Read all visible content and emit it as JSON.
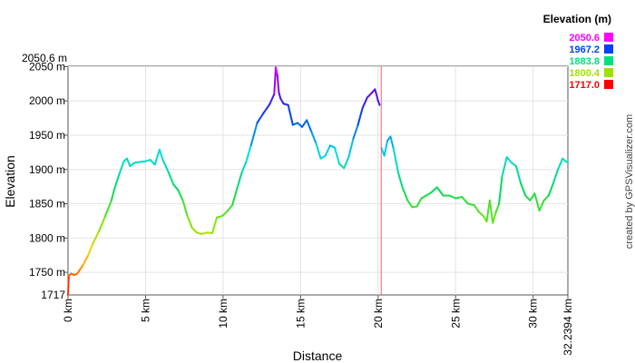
{
  "chart_data": {
    "type": "line",
    "xlabel": "Distance",
    "ylabel": "Elevation",
    "credit": "created by GPSVisualizer.com",
    "xlim": [
      0,
      32.2394
    ],
    "ylim": [
      1717,
      2050.6
    ],
    "ymax_label": "2050.6 m",
    "ymin_label": "1717",
    "y_ticks": [
      {
        "value": 1750,
        "label": "1750 m"
      },
      {
        "value": 1800,
        "label": "1800 m"
      },
      {
        "value": 1850,
        "label": "1850 m"
      },
      {
        "value": 1900,
        "label": "1900 m"
      },
      {
        "value": 1950,
        "label": "1950 m"
      },
      {
        "value": 2000,
        "label": "2000 m"
      },
      {
        "value": 2050,
        "label": "2050 m"
      }
    ],
    "x_ticks": [
      {
        "value": 0,
        "label": "0 km"
      },
      {
        "value": 5,
        "label": "5 km"
      },
      {
        "value": 10,
        "label": "10 km"
      },
      {
        "value": 15,
        "label": "15 km"
      },
      {
        "value": 20,
        "label": "20 km"
      },
      {
        "value": 25,
        "label": "25 km"
      },
      {
        "value": 30,
        "label": "30 km"
      },
      {
        "value": 32.2394,
        "label": "32.2394 km"
      }
    ],
    "legend": {
      "title": "Elevation (m)",
      "items": [
        {
          "label": "2050.6",
          "color": "#ff00ff"
        },
        {
          "label": "1967.2",
          "color": "#0040ff"
        },
        {
          "label": "1883.8",
          "color": "#00e080"
        },
        {
          "label": "1800.4",
          "color": "#a0e000"
        },
        {
          "label": "1717.0",
          "color": "#ff0000"
        }
      ]
    },
    "marker_x": 20.2,
    "segment_break_x": 20.1,
    "x": [
      0,
      0.05,
      0.2,
      0.4,
      0.6,
      0.8,
      1.0,
      1.3,
      1.6,
      2.0,
      2.4,
      2.8,
      3.0,
      3.3,
      3.6,
      3.8,
      4.0,
      4.3,
      4.6,
      5.0,
      5.3,
      5.6,
      5.9,
      6.1,
      6.3,
      6.5,
      6.8,
      7.1,
      7.4,
      7.7,
      8.0,
      8.3,
      8.6,
      9.0,
      9.3,
      9.6,
      9.8,
      10.0,
      10.3,
      10.6,
      10.9,
      11.2,
      11.5,
      11.8,
      12.2,
      12.6,
      13.0,
      13.3,
      13.4,
      13.5,
      13.6,
      13.7,
      13.9,
      14.2,
      14.5,
      14.8,
      15.1,
      15.4,
      15.7,
      16.0,
      16.3,
      16.6,
      16.9,
      17.2,
      17.5,
      17.8,
      18.1,
      18.4,
      18.7,
      19.0,
      19.3,
      19.6,
      19.8,
      20.0,
      20.1,
      20.2,
      20.4,
      20.6,
      20.8,
      21.0,
      21.3,
      21.6,
      21.9,
      22.2,
      22.5,
      22.8,
      23.1,
      23.4,
      23.8,
      24.2,
      24.6,
      25.0,
      25.4,
      25.8,
      26.2,
      26.5,
      26.8,
      27.0,
      27.2,
      27.4,
      27.6,
      27.8,
      28.0,
      28.3,
      28.6,
      28.9,
      29.2,
      29.5,
      29.8,
      30.1,
      30.4,
      30.7,
      31.0,
      31.3,
      31.6,
      31.9,
      32.1,
      32.2394
    ],
    "y": [
      1717,
      1745,
      1748,
      1746,
      1748,
      1755,
      1762,
      1775,
      1792,
      1810,
      1832,
      1855,
      1872,
      1893,
      1912,
      1916,
      1905,
      1910,
      1911,
      1912,
      1914,
      1907,
      1929,
      1915,
      1905,
      1895,
      1878,
      1870,
      1855,
      1832,
      1815,
      1808,
      1806,
      1808,
      1807,
      1830,
      1831,
      1833,
      1840,
      1848,
      1872,
      1895,
      1912,
      1935,
      1968,
      1982,
      1995,
      2010,
      2049,
      2038,
      2012,
      2004,
      1996,
      1994,
      1965,
      1968,
      1962,
      1972,
      1955,
      1938,
      1916,
      1920,
      1935,
      1932,
      1908,
      1902,
      1918,
      1945,
      1965,
      1990,
      2005,
      2012,
      2017,
      2000,
      1994,
      1932,
      1920,
      1942,
      1948,
      1930,
      1895,
      1872,
      1855,
      1845,
      1846,
      1858,
      1862,
      1866,
      1874,
      1862,
      1862,
      1858,
      1860,
      1850,
      1848,
      1838,
      1832,
      1824,
      1855,
      1822,
      1838,
      1850,
      1890,
      1918,
      1910,
      1905,
      1880,
      1862,
      1855,
      1865,
      1840,
      1855,
      1862,
      1880,
      1900,
      1916,
      1912,
      1910
    ]
  }
}
